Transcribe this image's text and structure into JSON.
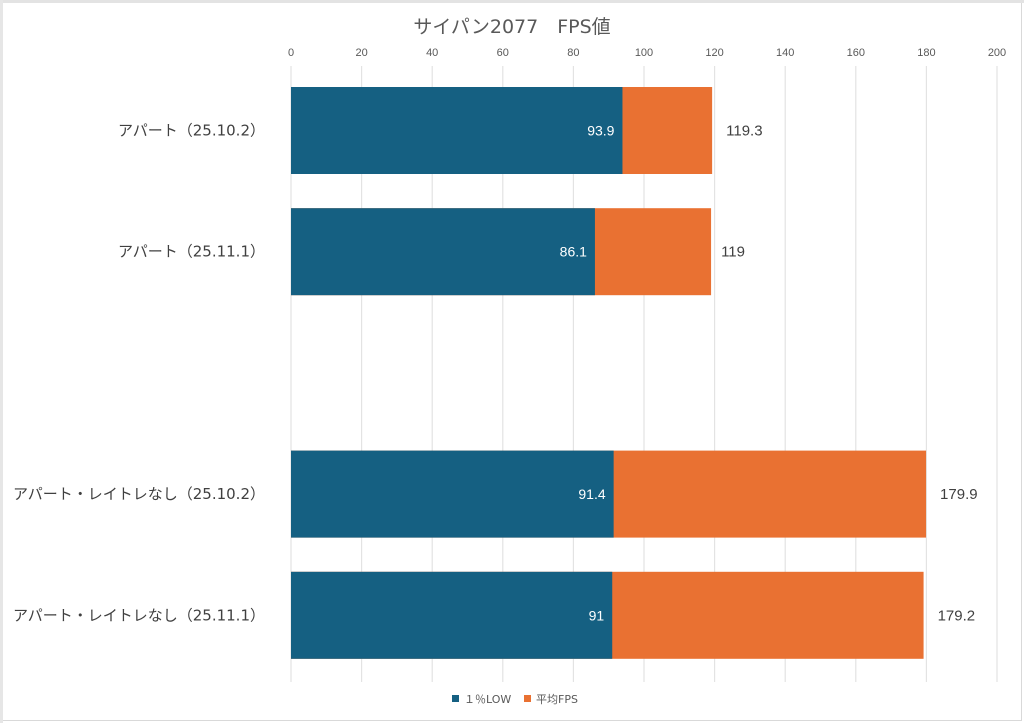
{
  "chart_data": {
    "type": "bar",
    "orientation": "horizontal",
    "title": "サイパン2077　FPS値",
    "xlabel": "",
    "ylabel": "",
    "xlim": [
      0,
      200
    ],
    "x_ticks": [
      0,
      20,
      40,
      60,
      80,
      100,
      120,
      140,
      160,
      180,
      200
    ],
    "grid": true,
    "legend_position": "bottom",
    "categories": [
      "アパート（25.10.2）",
      "アパート（25.11.1）",
      "",
      "アパート・レイトレなし（25.10.2）",
      "アパート・レイトレなし（25.11.1）"
    ],
    "series": [
      {
        "name": "平均FPS",
        "color": "#E97132",
        "values": [
          119.3,
          119,
          null,
          179.9,
          179.2
        ],
        "labels": [
          "119.3",
          "119",
          "",
          "179.9",
          "179.2"
        ],
        "label_position": "outside-end"
      },
      {
        "name": "１％LOW",
        "color": "#156082",
        "values": [
          93.9,
          86.1,
          null,
          91.4,
          91
        ],
        "labels": [
          "93.9",
          "86.1",
          "",
          "91.4",
          "91"
        ],
        "label_position": "inside-end"
      }
    ],
    "legend": [
      {
        "name": "１％LOW",
        "color": "#156082"
      },
      {
        "name": "平均FPS",
        "color": "#E97132"
      }
    ]
  }
}
